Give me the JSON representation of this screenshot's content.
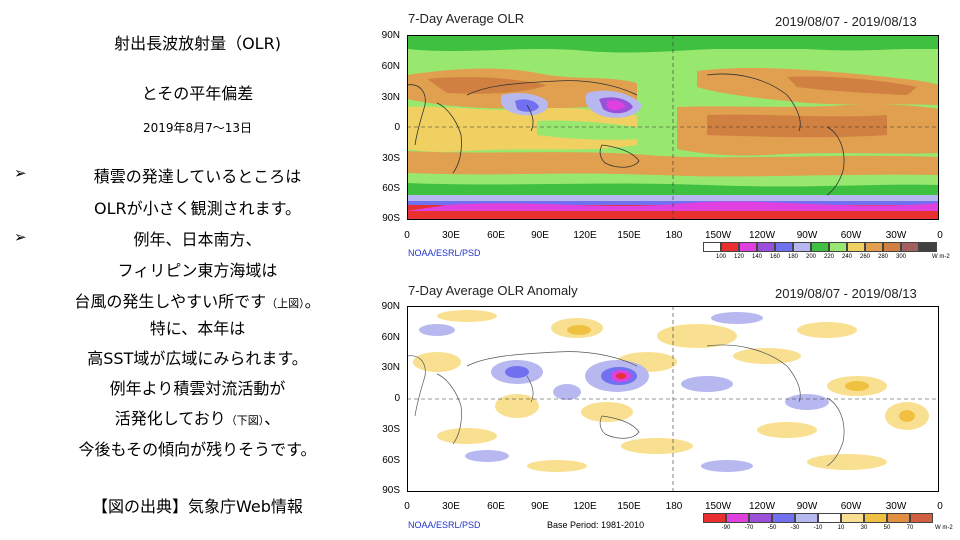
{
  "left_text": {
    "title": "射出長波放射量（OLR)",
    "subtitle": "とその平年偏差",
    "date": "2019年8月7〜13日",
    "bullet_char": "➢",
    "line1": "積雲の発達しているところは",
    "line2": "OLRが小さく観測されます。",
    "line3": "例年、日本南方、",
    "line4": "フィリピン東方海域は",
    "line5_main": "台風の発生しやすい所です",
    "line5_small": "（上図）",
    "line5_end": "。",
    "line6": "特に、本年は",
    "line7": "高SST域が広域にみられます。",
    "line8": "例年より積雲対流活動が",
    "line9_main": "活発化しており",
    "line9_small": "（下図）",
    "line9_end": "、",
    "line10": "今後もその傾向が残りそうです。",
    "source": "【図の出典】気象庁Web情報"
  },
  "panel_top": {
    "title": "7-Day Average OLR",
    "dates": "2019/08/07 - 2019/08/13",
    "credit": "NOAA/ESRL/PSD",
    "colorbar_labels": [
      "100",
      "120",
      "140",
      "160",
      "180",
      "200",
      "220",
      "240",
      "260",
      "280",
      "300"
    ],
    "colorbar_colors": [
      "#ffffff",
      "#e83030",
      "#e040e0",
      "#9a50d8",
      "#7070f0",
      "#b8b8f0",
      "#40c040",
      "#98e870",
      "#f0d060",
      "#e0a050",
      "#d08040",
      "#a06060",
      "#404040"
    ],
    "unit": "W m-2"
  },
  "panel_bottom": {
    "title": "7-Day Average OLR Anomaly",
    "dates": "2019/08/07 - 2019/08/13",
    "credit": "NOAA/ESRL/PSD",
    "base_period": "Base Period: 1981-2010",
    "colorbar_labels": [
      "-90",
      "-70",
      "-50",
      "-30",
      "-10",
      "10",
      "30",
      "50",
      "70"
    ],
    "colorbar_colors": [
      "#e83030",
      "#e040e0",
      "#9a50d8",
      "#7070f0",
      "#b8b8f0",
      "#ffffff",
      "#f8e090",
      "#f0c040",
      "#e09040",
      "#d06040"
    ],
    "unit": "W m-2"
  },
  "lat_labels": [
    "90N",
    "60N",
    "30N",
    "0",
    "30S",
    "60S",
    "90S"
  ],
  "lon_labels": [
    "0",
    "30E",
    "60E",
    "90E",
    "120E",
    "150E",
    "180",
    "150W",
    "120W",
    "90W",
    "60W",
    "30W",
    "0"
  ]
}
